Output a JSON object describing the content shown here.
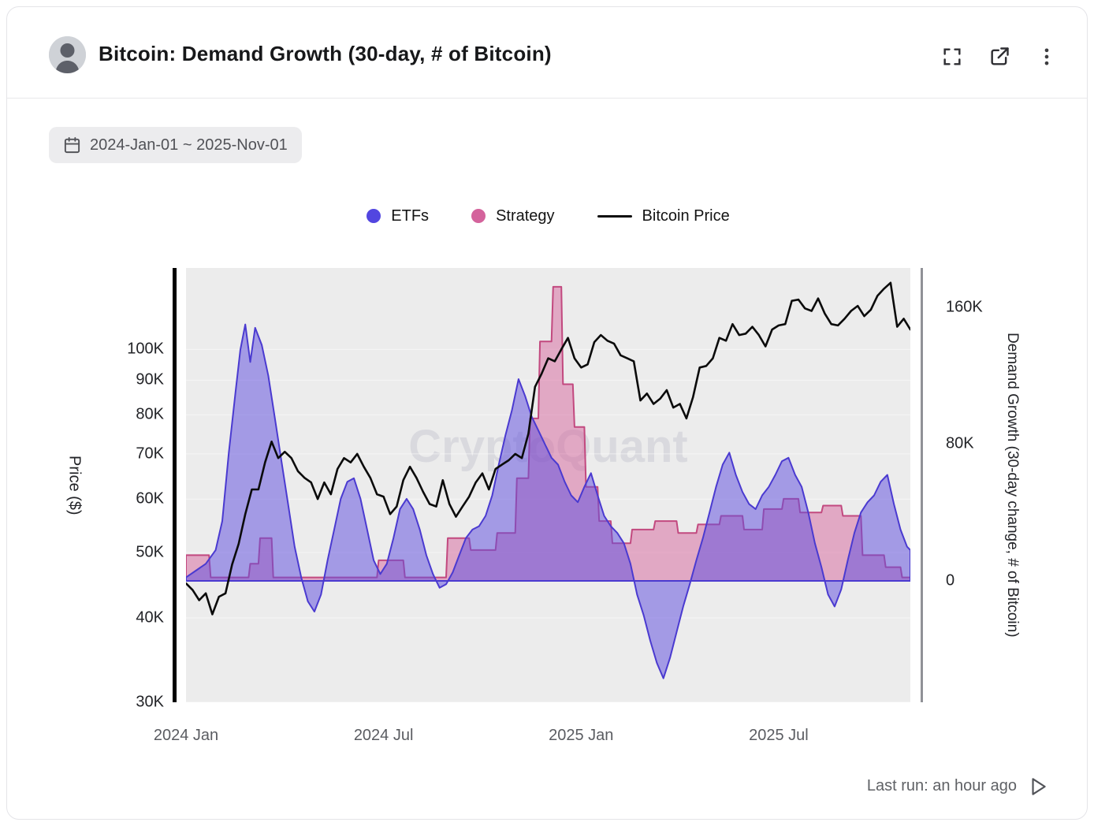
{
  "header": {
    "title": "Bitcoin: Demand Growth (30-day, # of Bitcoin)"
  },
  "date_range": {
    "label": "2024-Jan-01 ~ 2025-Nov-01"
  },
  "legend": [
    {
      "label": "ETFs",
      "color": "#5246e0",
      "type": "dot"
    },
    {
      "label": "Strategy",
      "color": "#d4639c",
      "type": "dot"
    },
    {
      "label": "Bitcoin Price",
      "color": "#0b0b0b",
      "type": "line"
    }
  ],
  "watermark": "CryptoQuant",
  "footer": {
    "last_run": "Last run: an hour ago"
  },
  "colors": {
    "etf_fill": "rgba(96,78,222,0.52)",
    "etf_stroke": "#4a3ad0",
    "strategy_fill": "rgba(214,99,156,0.50)",
    "strategy_stroke": "#c2497f",
    "price_stroke": "#0b0b0b",
    "plot_bg": "#ececec"
  },
  "chart_data": {
    "type": "line",
    "title": "Bitcoin: Demand Growth (30-day, # of Bitcoin)",
    "x_unit": "months since 2024-Jan-01",
    "x_range": [
      0,
      22
    ],
    "value_unit": "thousands",
    "x_ticks": [
      {
        "t": 0,
        "label": "2024 Jan"
      },
      {
        "t": 6,
        "label": "2024 Jul"
      },
      {
        "t": 12,
        "label": "2025 Jan"
      },
      {
        "t": 18,
        "label": "2025 Jul"
      }
    ],
    "price_axis": {
      "label": "Price ($)",
      "scale": "log",
      "min": 30,
      "max": 132,
      "ticks": [
        {
          "v": 30,
          "label": "30K"
        },
        {
          "v": 40,
          "label": "40K"
        },
        {
          "v": 50,
          "label": "50K"
        },
        {
          "v": 60,
          "label": "60K"
        },
        {
          "v": 70,
          "label": "70K"
        },
        {
          "v": 80,
          "label": "80K"
        },
        {
          "v": 90,
          "label": "90K"
        },
        {
          "v": 100,
          "label": "100K"
        }
      ]
    },
    "demand_axis": {
      "label": "Demand Growth (30-day change, # of Bitcoin)",
      "scale": "linear",
      "min": -71,
      "max": 183,
      "ticks": [
        {
          "v": 0,
          "label": "0"
        },
        {
          "v": 80,
          "label": "80K"
        },
        {
          "v": 160,
          "label": "160K"
        }
      ]
    },
    "series": [
      {
        "name": "Strategy",
        "axis": "demand",
        "style": "area",
        "points": [
          [
            0,
            15
          ],
          [
            0.7,
            15
          ],
          [
            0.75,
            2
          ],
          [
            1.9,
            2
          ],
          [
            1.95,
            10
          ],
          [
            2.2,
            10
          ],
          [
            2.25,
            25
          ],
          [
            2.6,
            25
          ],
          [
            2.65,
            2
          ],
          [
            5.8,
            2
          ],
          [
            5.85,
            12
          ],
          [
            6.6,
            12
          ],
          [
            6.65,
            2
          ],
          [
            7.9,
            2
          ],
          [
            7.95,
            25
          ],
          [
            8.6,
            25
          ],
          [
            8.65,
            18
          ],
          [
            9.4,
            18
          ],
          [
            9.45,
            28
          ],
          [
            10.0,
            28
          ],
          [
            10.05,
            60
          ],
          [
            10.4,
            60
          ],
          [
            10.45,
            95
          ],
          [
            10.7,
            95
          ],
          [
            10.75,
            140
          ],
          [
            11.1,
            140
          ],
          [
            11.15,
            172
          ],
          [
            11.4,
            172
          ],
          [
            11.45,
            115
          ],
          [
            11.75,
            115
          ],
          [
            11.8,
            90
          ],
          [
            12.1,
            90
          ],
          [
            12.15,
            55
          ],
          [
            12.5,
            55
          ],
          [
            12.55,
            35
          ],
          [
            12.9,
            35
          ],
          [
            12.95,
            22
          ],
          [
            13.5,
            22
          ],
          [
            13.55,
            30
          ],
          [
            14.2,
            30
          ],
          [
            14.25,
            35
          ],
          [
            14.9,
            35
          ],
          [
            14.95,
            28
          ],
          [
            15.5,
            28
          ],
          [
            15.55,
            33
          ],
          [
            16.2,
            33
          ],
          [
            16.25,
            38
          ],
          [
            16.9,
            38
          ],
          [
            16.95,
            30
          ],
          [
            17.5,
            30
          ],
          [
            17.55,
            42
          ],
          [
            18.1,
            42
          ],
          [
            18.15,
            48
          ],
          [
            18.6,
            48
          ],
          [
            18.65,
            40
          ],
          [
            19.3,
            40
          ],
          [
            19.35,
            44
          ],
          [
            19.9,
            44
          ],
          [
            19.95,
            38
          ],
          [
            20.5,
            38
          ],
          [
            20.55,
            15
          ],
          [
            21.2,
            15
          ],
          [
            21.25,
            8
          ],
          [
            21.7,
            8
          ],
          [
            21.75,
            2
          ],
          [
            22,
            2
          ]
        ]
      },
      {
        "name": "ETFs",
        "axis": "demand",
        "style": "area",
        "points": [
          [
            0,
            2
          ],
          [
            0.3,
            6
          ],
          [
            0.6,
            10
          ],
          [
            0.9,
            18
          ],
          [
            1.1,
            35
          ],
          [
            1.3,
            75
          ],
          [
            1.5,
            110
          ],
          [
            1.65,
            135
          ],
          [
            1.8,
            150
          ],
          [
            1.95,
            128
          ],
          [
            2.1,
            148
          ],
          [
            2.3,
            138
          ],
          [
            2.5,
            120
          ],
          [
            2.7,
            95
          ],
          [
            2.9,
            70
          ],
          [
            3.1,
            45
          ],
          [
            3.3,
            20
          ],
          [
            3.5,
            2
          ],
          [
            3.7,
            -12
          ],
          [
            3.9,
            -18
          ],
          [
            4.1,
            -8
          ],
          [
            4.3,
            12
          ],
          [
            4.5,
            30
          ],
          [
            4.7,
            48
          ],
          [
            4.9,
            58
          ],
          [
            5.1,
            60
          ],
          [
            5.3,
            48
          ],
          [
            5.5,
            30
          ],
          [
            5.7,
            12
          ],
          [
            5.9,
            4
          ],
          [
            6.1,
            10
          ],
          [
            6.3,
            25
          ],
          [
            6.5,
            42
          ],
          [
            6.7,
            48
          ],
          [
            6.9,
            42
          ],
          [
            7.1,
            30
          ],
          [
            7.3,
            15
          ],
          [
            7.5,
            4
          ],
          [
            7.7,
            -4
          ],
          [
            7.9,
            -2
          ],
          [
            8.1,
            5
          ],
          [
            8.3,
            15
          ],
          [
            8.5,
            25
          ],
          [
            8.7,
            30
          ],
          [
            8.9,
            32
          ],
          [
            9.1,
            38
          ],
          [
            9.3,
            50
          ],
          [
            9.5,
            68
          ],
          [
            9.7,
            85
          ],
          [
            9.9,
            100
          ],
          [
            10.1,
            118
          ],
          [
            10.3,
            108
          ],
          [
            10.5,
            96
          ],
          [
            10.7,
            88
          ],
          [
            10.9,
            80
          ],
          [
            11.1,
            72
          ],
          [
            11.3,
            68
          ],
          [
            11.5,
            58
          ],
          [
            11.7,
            50
          ],
          [
            11.9,
            46
          ],
          [
            12.1,
            55
          ],
          [
            12.3,
            63
          ],
          [
            12.5,
            50
          ],
          [
            12.7,
            38
          ],
          [
            12.9,
            32
          ],
          [
            13.1,
            28
          ],
          [
            13.3,
            22
          ],
          [
            13.5,
            10
          ],
          [
            13.7,
            -8
          ],
          [
            13.9,
            -20
          ],
          [
            14.1,
            -35
          ],
          [
            14.3,
            -48
          ],
          [
            14.5,
            -57
          ],
          [
            14.7,
            -45
          ],
          [
            14.9,
            -30
          ],
          [
            15.1,
            -15
          ],
          [
            15.3,
            -2
          ],
          [
            15.5,
            12
          ],
          [
            15.7,
            25
          ],
          [
            15.9,
            40
          ],
          [
            16.1,
            55
          ],
          [
            16.3,
            68
          ],
          [
            16.5,
            75
          ],
          [
            16.7,
            62
          ],
          [
            16.9,
            52
          ],
          [
            17.1,
            45
          ],
          [
            17.3,
            42
          ],
          [
            17.5,
            50
          ],
          [
            17.7,
            55
          ],
          [
            17.9,
            62
          ],
          [
            18.1,
            70
          ],
          [
            18.3,
            72
          ],
          [
            18.5,
            62
          ],
          [
            18.7,
            55
          ],
          [
            18.9,
            40
          ],
          [
            19.1,
            22
          ],
          [
            19.3,
            8
          ],
          [
            19.5,
            -8
          ],
          [
            19.7,
            -15
          ],
          [
            19.9,
            -5
          ],
          [
            20.1,
            12
          ],
          [
            20.3,
            28
          ],
          [
            20.5,
            40
          ],
          [
            20.7,
            46
          ],
          [
            20.9,
            50
          ],
          [
            21.1,
            58
          ],
          [
            21.3,
            62
          ],
          [
            21.5,
            45
          ],
          [
            21.7,
            30
          ],
          [
            21.9,
            20
          ],
          [
            22,
            18
          ]
        ]
      },
      {
        "name": "Bitcoin Price",
        "axis": "price",
        "style": "line",
        "points": [
          [
            0,
            45
          ],
          [
            0.2,
            44
          ],
          [
            0.4,
            42.5
          ],
          [
            0.6,
            43.5
          ],
          [
            0.8,
            40.5
          ],
          [
            1,
            43
          ],
          [
            1.2,
            43.5
          ],
          [
            1.4,
            48
          ],
          [
            1.6,
            51.5
          ],
          [
            1.8,
            57
          ],
          [
            2,
            62
          ],
          [
            2.2,
            62
          ],
          [
            2.4,
            68
          ],
          [
            2.6,
            73
          ],
          [
            2.8,
            69
          ],
          [
            3,
            70.5
          ],
          [
            3.2,
            69
          ],
          [
            3.4,
            66
          ],
          [
            3.6,
            64.5
          ],
          [
            3.8,
            63.5
          ],
          [
            4,
            60
          ],
          [
            4.2,
            63.5
          ],
          [
            4.4,
            61
          ],
          [
            4.6,
            66.5
          ],
          [
            4.8,
            69
          ],
          [
            5,
            68
          ],
          [
            5.2,
            70
          ],
          [
            5.4,
            67
          ],
          [
            5.6,
            64.5
          ],
          [
            5.8,
            61
          ],
          [
            6,
            60.5
          ],
          [
            6.2,
            57
          ],
          [
            6.4,
            58.5
          ],
          [
            6.6,
            64
          ],
          [
            6.8,
            67
          ],
          [
            7,
            64.5
          ],
          [
            7.2,
            61.5
          ],
          [
            7.4,
            59
          ],
          [
            7.6,
            58.5
          ],
          [
            7.8,
            64
          ],
          [
            8,
            59
          ],
          [
            8.2,
            56.5
          ],
          [
            8.4,
            58.5
          ],
          [
            8.6,
            60.5
          ],
          [
            8.8,
            63.5
          ],
          [
            9,
            65.5
          ],
          [
            9.2,
            62
          ],
          [
            9.4,
            66.5
          ],
          [
            9.6,
            67.5
          ],
          [
            9.8,
            68.5
          ],
          [
            10,
            70
          ],
          [
            10.2,
            69
          ],
          [
            10.4,
            75
          ],
          [
            10.6,
            88
          ],
          [
            10.8,
            92
          ],
          [
            11,
            97
          ],
          [
            11.2,
            96
          ],
          [
            11.4,
            100
          ],
          [
            11.6,
            104
          ],
          [
            11.8,
            97
          ],
          [
            12,
            94
          ],
          [
            12.2,
            95
          ],
          [
            12.4,
            102.5
          ],
          [
            12.6,
            105
          ],
          [
            12.8,
            103
          ],
          [
            13,
            102
          ],
          [
            13.2,
            98
          ],
          [
            13.4,
            97
          ],
          [
            13.6,
            96
          ],
          [
            13.8,
            84
          ],
          [
            14,
            86
          ],
          [
            14.2,
            83
          ],
          [
            14.4,
            84.5
          ],
          [
            14.6,
            87
          ],
          [
            14.8,
            82
          ],
          [
            15,
            83
          ],
          [
            15.2,
            79
          ],
          [
            15.4,
            85
          ],
          [
            15.6,
            94
          ],
          [
            15.8,
            94.5
          ],
          [
            16,
            97
          ],
          [
            16.2,
            104
          ],
          [
            16.4,
            103
          ],
          [
            16.6,
            109
          ],
          [
            16.8,
            105
          ],
          [
            17,
            105.5
          ],
          [
            17.2,
            108
          ],
          [
            17.4,
            105
          ],
          [
            17.6,
            101
          ],
          [
            17.8,
            107
          ],
          [
            18,
            108.5
          ],
          [
            18.2,
            109
          ],
          [
            18.4,
            118
          ],
          [
            18.6,
            118.5
          ],
          [
            18.8,
            115
          ],
          [
            19,
            114
          ],
          [
            19.2,
            119
          ],
          [
            19.4,
            113
          ],
          [
            19.6,
            109
          ],
          [
            19.8,
            108.5
          ],
          [
            20,
            111
          ],
          [
            20.2,
            114
          ],
          [
            20.4,
            116
          ],
          [
            20.6,
            112
          ],
          [
            20.8,
            114.5
          ],
          [
            21,
            120
          ],
          [
            21.2,
            123
          ],
          [
            21.4,
            125.5
          ],
          [
            21.6,
            108
          ],
          [
            21.8,
            111
          ],
          [
            22,
            107
          ]
        ]
      }
    ]
  }
}
